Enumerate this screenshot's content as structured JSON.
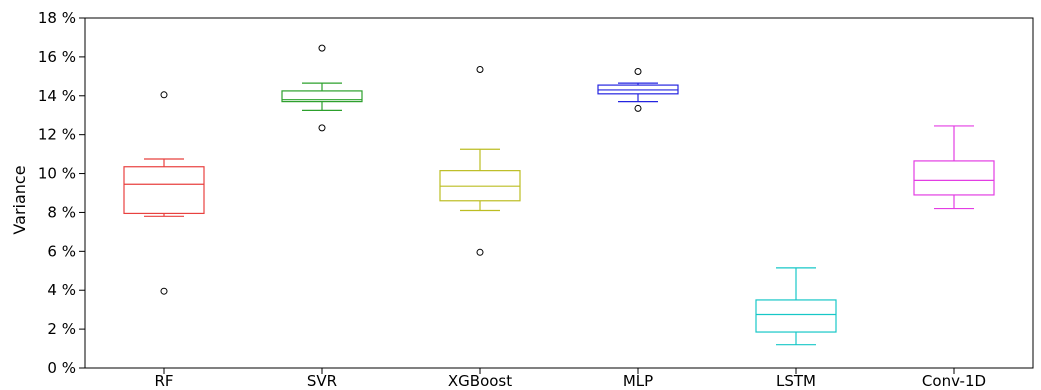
{
  "chart_data": {
    "type": "box",
    "title": "",
    "xlabel": "",
    "ylabel": "Variance",
    "ylim": [
      0,
      18
    ],
    "y_ticks": [
      0,
      2,
      4,
      6,
      8,
      10,
      12,
      14,
      16,
      18
    ],
    "y_tick_labels": [
      "0 %",
      "2 %",
      "4 %",
      "6 %",
      "8 %",
      "10 %",
      "12 %",
      "14 %",
      "16 %",
      "18 %"
    ],
    "grid": false,
    "legend": "none",
    "categories": [
      "RF",
      "SVR",
      "XGBoost",
      "MLP",
      "LSTM",
      "Conv-1D"
    ],
    "boxes": [
      {
        "category": "RF",
        "color": "#e8413f",
        "whisker_low": 7.8,
        "q1": 7.95,
        "median": 9.45,
        "q3": 10.35,
        "whisker_high": 10.75,
        "outliers": [
          14.05,
          3.95
        ]
      },
      {
        "category": "SVR",
        "color": "#2ca02c",
        "whisker_low": 13.25,
        "q1": 13.7,
        "median": 13.8,
        "q3": 14.25,
        "whisker_high": 14.65,
        "outliers": [
          16.45,
          12.35
        ]
      },
      {
        "category": "XGBoost",
        "color": "#bcbd22",
        "whisker_low": 8.1,
        "q1": 8.6,
        "median": 9.35,
        "q3": 10.15,
        "whisker_high": 11.25,
        "outliers": [
          15.35,
          5.95
        ]
      },
      {
        "category": "MLP",
        "color": "#2424e0",
        "whisker_low": 13.7,
        "q1": 14.1,
        "median": 14.3,
        "q3": 14.55,
        "whisker_high": 14.65,
        "outliers": [
          15.25,
          13.35
        ]
      },
      {
        "category": "LSTM",
        "color": "#17c7c7",
        "whisker_low": 1.2,
        "q1": 1.85,
        "median": 2.75,
        "q3": 3.5,
        "whisker_high": 5.15,
        "outliers": []
      },
      {
        "category": "Conv-1D",
        "color": "#e33de3",
        "whisker_low": 8.2,
        "q1": 8.9,
        "median": 9.65,
        "q3": 10.65,
        "whisker_high": 12.45,
        "outliers": []
      }
    ]
  }
}
